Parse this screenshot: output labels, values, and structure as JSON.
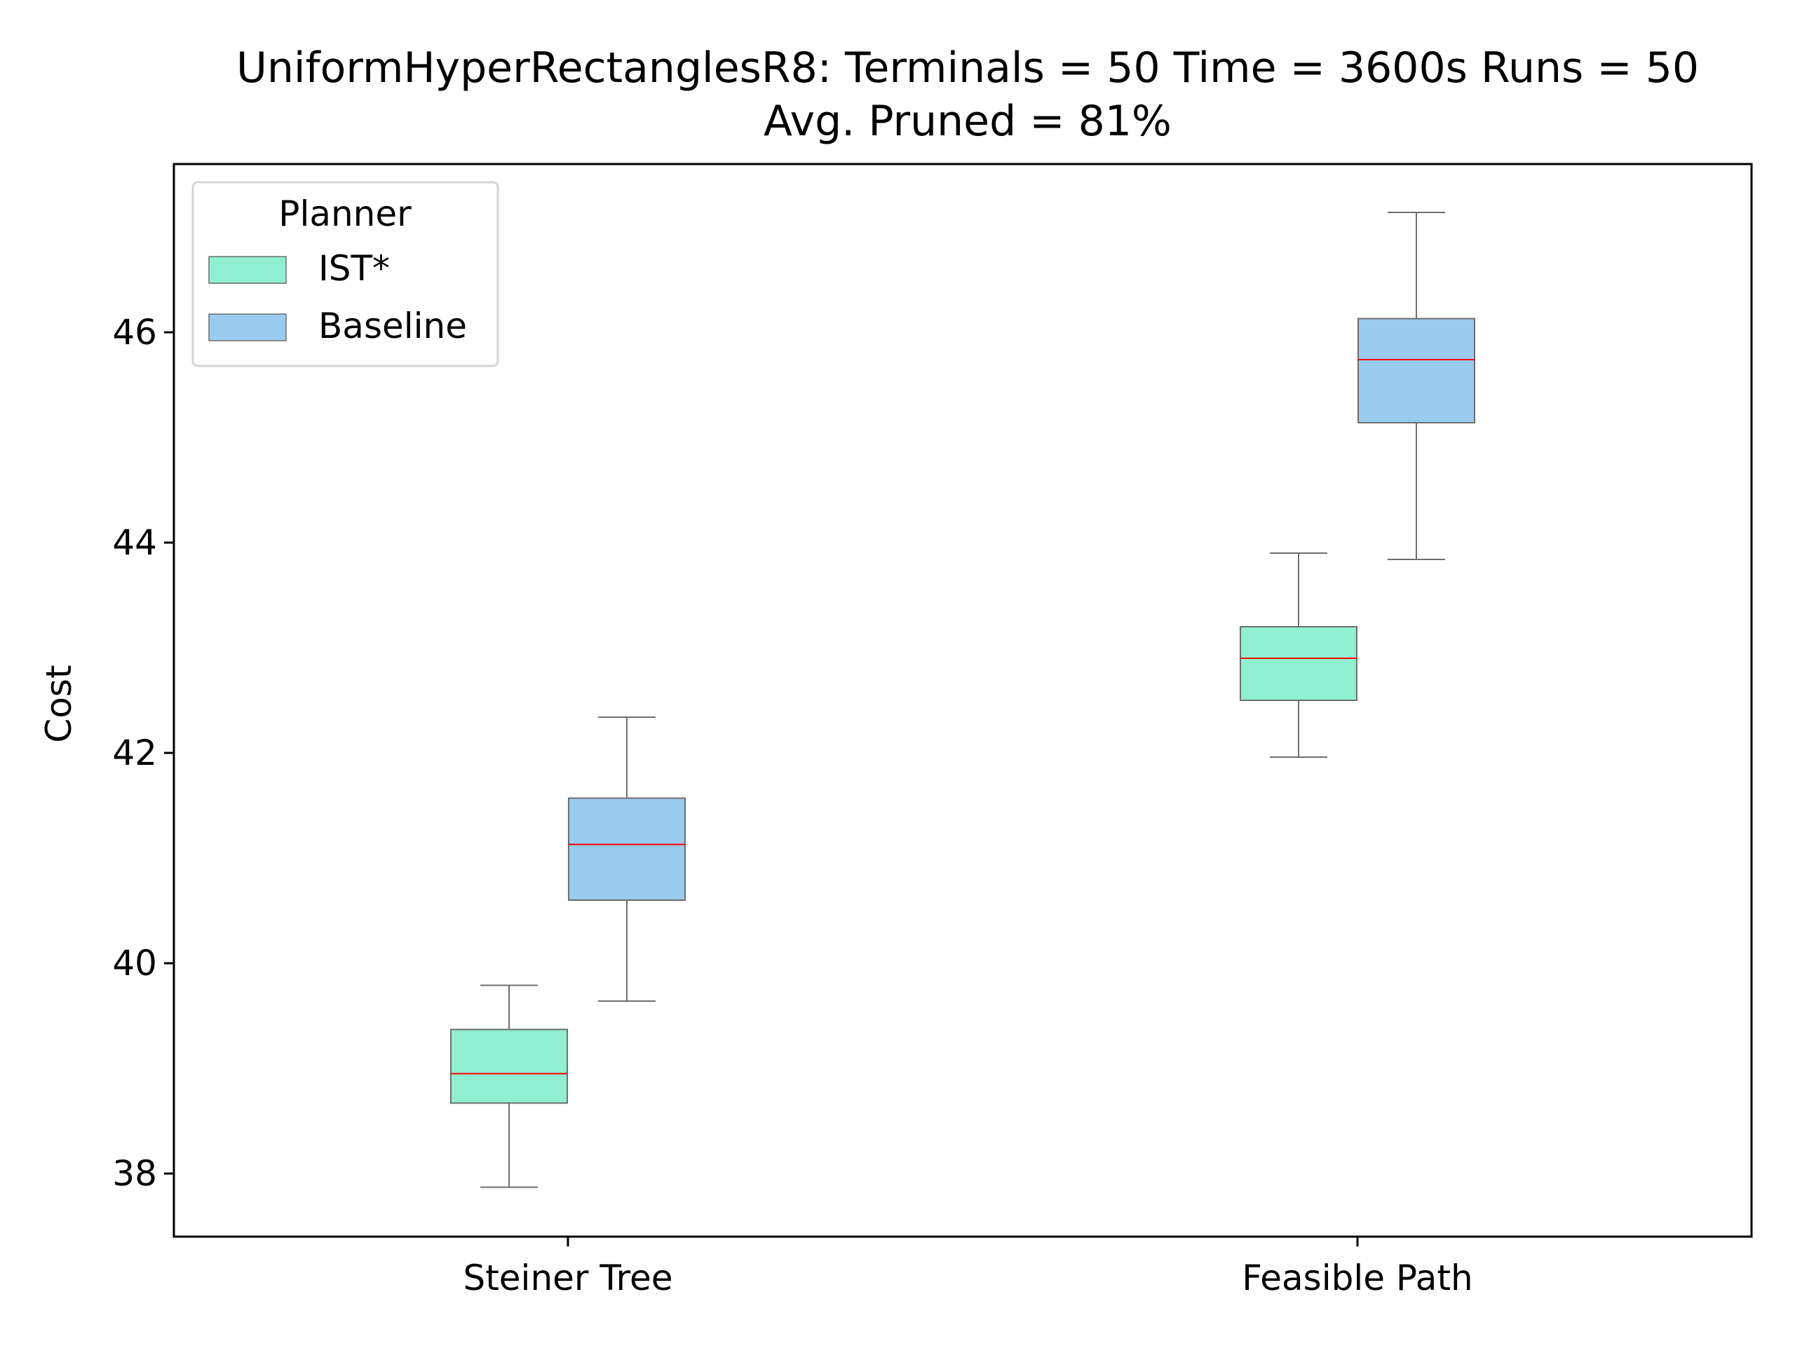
{
  "chart_data": {
    "type": "box",
    "title": "UniformHyperRectanglesR8:  Terminals = 50  Time = 3600s  Runs = 50",
    "subtitle": "Avg. Pruned = 81%",
    "xlabel": "",
    "ylabel": "Cost",
    "categories": [
      "Steiner Tree",
      "Feasible Path"
    ],
    "ylim": [
      37.4,
      47.6
    ],
    "yticks": [
      38,
      40,
      42,
      44,
      46
    ],
    "ytick_labels": [
      "38",
      "40",
      "42",
      "44",
      "46"
    ],
    "grid": false,
    "legend": {
      "title": "Planner",
      "position": "top-left"
    },
    "colors": {
      "median": "#ff0000",
      "whisker": "#6e6e6e",
      "axis": "#000000"
    },
    "series": [
      {
        "name": "IST*",
        "color": "#90efd0",
        "boxes": [
          {
            "whisker_low": 37.87,
            "q1": 38.67,
            "median": 38.95,
            "q3": 39.37,
            "whisker_high": 39.79
          },
          {
            "whisker_low": 41.96,
            "q1": 42.5,
            "median": 42.9,
            "q3": 43.2,
            "whisker_high": 43.9
          }
        ]
      },
      {
        "name": "Baseline",
        "color": "#99cbee",
        "boxes": [
          {
            "whisker_low": 39.64,
            "q1": 40.6,
            "median": 41.13,
            "q3": 41.57,
            "whisker_high": 42.34
          },
          {
            "whisker_low": 43.84,
            "q1": 45.14,
            "median": 45.74,
            "q3": 46.13,
            "whisker_high": 47.14
          }
        ]
      }
    ]
  }
}
